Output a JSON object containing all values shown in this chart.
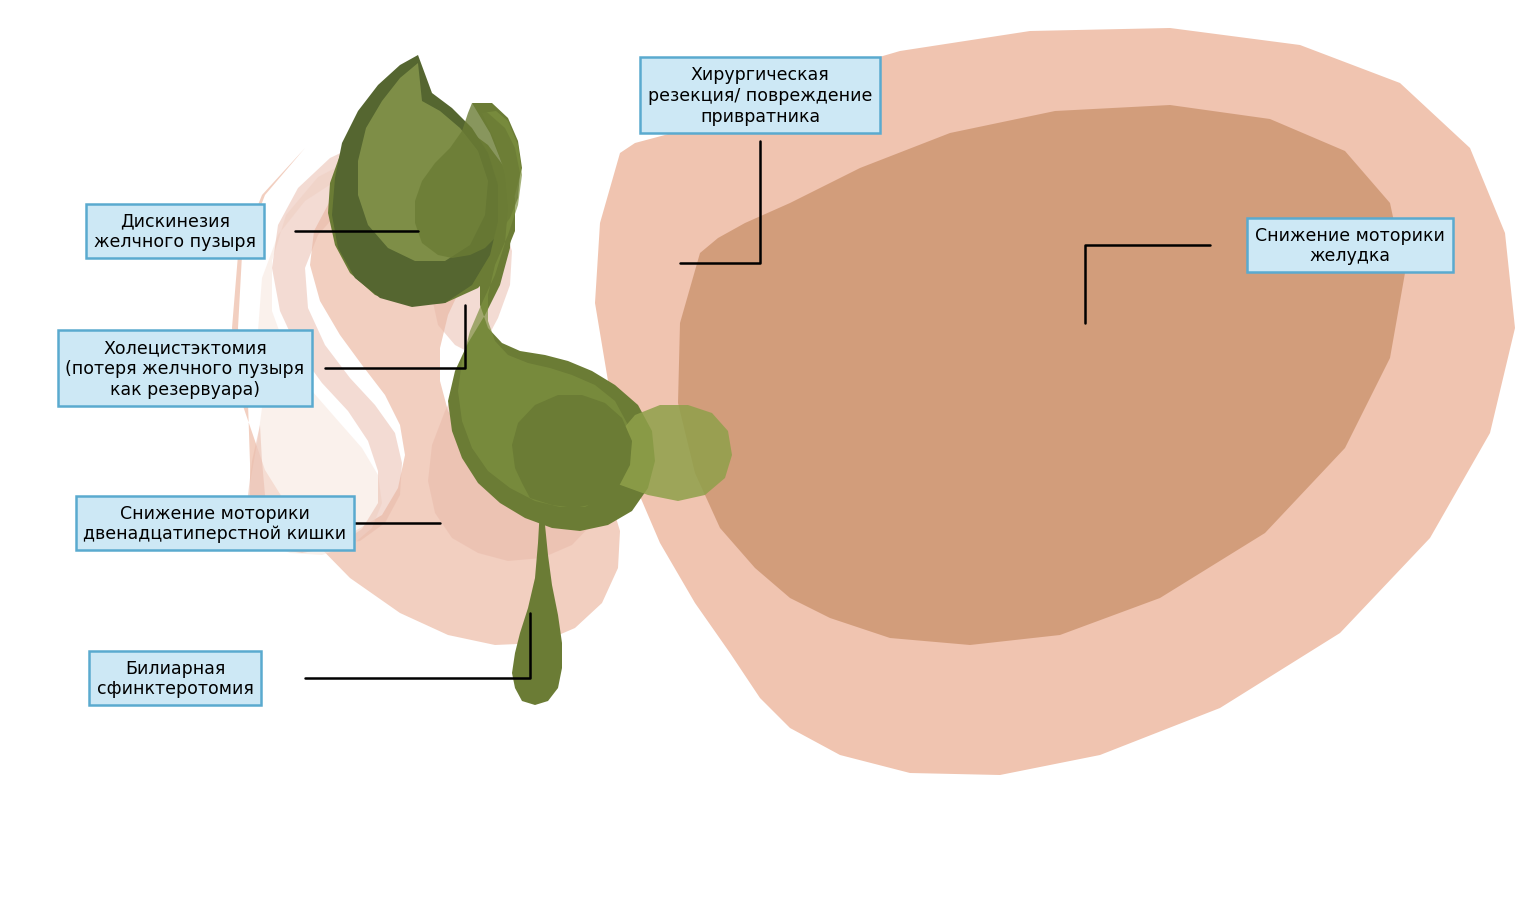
{
  "background_color": "#ffffff",
  "labels": {
    "dyskinesia": "Дискинезия\nжелчного пузыря",
    "cholecystectomy": "Холецистэктомия\n(потеря желчного пузыря\nкак резервуара)",
    "motility_reduction": "Снижение моторики\nдвенадцатиперстной кишки",
    "biliary": "Билиарная\nсфинктеротомия",
    "surgical": "Хирургическая\nрезекция/ повреждение\nпривратника",
    "stomach_motility": "Снижение моторики\nжелудка"
  },
  "label_box_color": "#cde8f5",
  "label_box_edge": "#5aaacf",
  "colors": {
    "stomach_outer": "#f0c4b0",
    "stomach_inner": "#c9906a",
    "duodenum_outer": "#f2cfc0",
    "duodenum_inner": "#e8b8a8",
    "duodenum_dark_ring": "#e0a898",
    "bile_green_dark": "#6b7c35",
    "bile_green_mid": "#7d9040",
    "bile_green_light": "#9aaa58",
    "gallbladder_dark": "#556630",
    "pylorus_green": "#8fa04a"
  }
}
